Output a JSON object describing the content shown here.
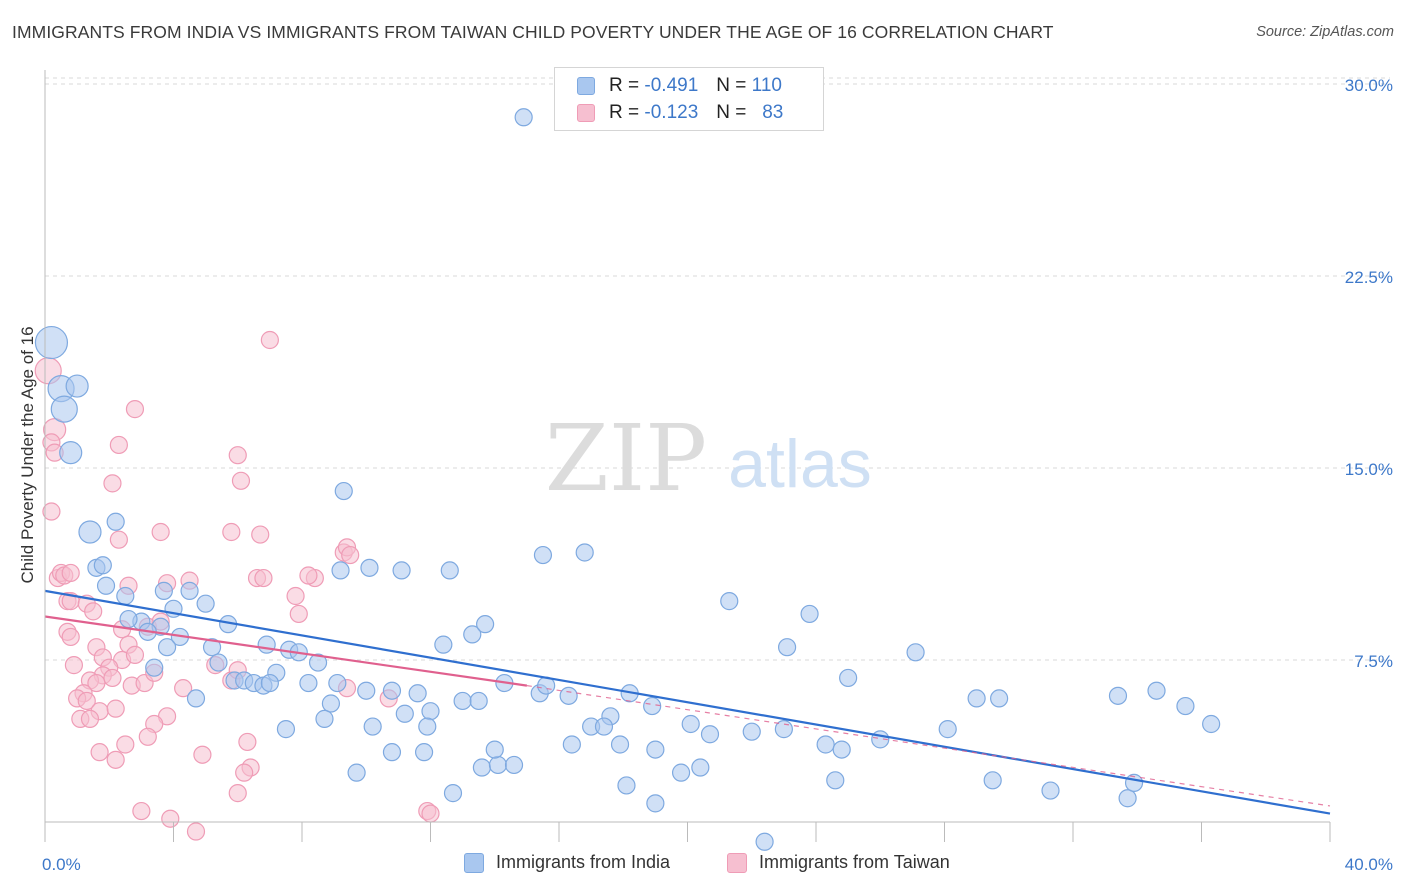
{
  "title": "IMMIGRANTS FROM INDIA VS IMMIGRANTS FROM TAIWAN CHILD POVERTY UNDER THE AGE OF 16 CORRELATION CHART",
  "source": "Source: ZipAtlas.com",
  "watermark": {
    "zip": "ZIP",
    "atlas": "atlas"
  },
  "legend": {
    "india": {
      "r_label": "R =",
      "r_value": "-0.491",
      "n_label": "N =",
      "n_value": "110"
    },
    "taiwan": {
      "r_label": "R =",
      "r_value": "-0.123",
      "n_label": "N =",
      "n_value": "83"
    }
  },
  "colors": {
    "india_fill": "#a9c7ef",
    "india_stroke": "#7ea9e0",
    "india_line": "#2f6fcf",
    "taiwan_fill": "#f6bfd0",
    "taiwan_stroke": "#ef9cb6",
    "taiwan_line": "#e0608e",
    "tick_label": "#3d78c9",
    "grid": "#d9d9d9"
  },
  "chart_data": {
    "type": "scatter",
    "title": "IMMIGRANTS FROM INDIA VS IMMIGRANTS FROM TAIWAN CHILD POVERTY UNDER THE AGE OF 16 CORRELATION CHART",
    "xlabel": "",
    "ylabel": "Child Poverty Under the Age of 16",
    "xlim": [
      0,
      40
    ],
    "ylim": [
      0,
      31
    ],
    "x_tick_labels": [
      "0.0%",
      "40.0%"
    ],
    "y_ticks": [
      7.5,
      15.0,
      22.5,
      30.0
    ],
    "y_tick_labels": [
      "7.5%",
      "15.0%",
      "22.5%",
      "30.0%"
    ],
    "grid": true,
    "legend_position": "top-center",
    "series": [
      {
        "name": "Immigrants from India",
        "r": -0.491,
        "n": 110,
        "trend": {
          "x0": 0,
          "y0": 10.2,
          "x1": 40,
          "y1": 1.5
        },
        "points": [
          [
            0.2,
            19.9,
            5
          ],
          [
            0.5,
            18.1,
            3
          ],
          [
            1.0,
            18.2,
            2
          ],
          [
            0.6,
            17.3,
            3
          ],
          [
            0.8,
            15.6,
            2
          ],
          [
            1.4,
            12.5,
            2
          ],
          [
            2.2,
            12.9,
            1
          ],
          [
            1.6,
            11.1,
            1
          ],
          [
            1.8,
            11.2,
            1
          ],
          [
            1.9,
            10.4,
            1
          ],
          [
            2.5,
            10.0,
            1
          ],
          [
            3.7,
            10.2,
            1
          ],
          [
            4.5,
            10.2,
            1
          ],
          [
            5.0,
            9.7,
            1
          ],
          [
            4.0,
            9.5,
            1
          ],
          [
            3.0,
            9.0,
            1
          ],
          [
            2.6,
            9.1,
            1
          ],
          [
            3.6,
            8.8,
            1
          ],
          [
            3.2,
            8.6,
            1
          ],
          [
            4.2,
            8.4,
            1
          ],
          [
            3.8,
            8.0,
            1
          ],
          [
            5.7,
            8.9,
            1
          ],
          [
            5.2,
            8.0,
            1
          ],
          [
            5.4,
            7.4,
            1
          ],
          [
            3.4,
            7.2,
            1
          ],
          [
            6.9,
            8.1,
            1
          ],
          [
            7.6,
            7.9,
            1
          ],
          [
            7.9,
            7.8,
            1
          ],
          [
            8.5,
            7.4,
            1
          ],
          [
            7.2,
            7.0,
            1
          ],
          [
            5.9,
            6.7,
            1
          ],
          [
            6.2,
            6.7,
            1
          ],
          [
            6.5,
            6.6,
            1
          ],
          [
            6.8,
            6.5,
            1
          ],
          [
            7.0,
            6.6,
            1
          ],
          [
            8.2,
            6.6,
            1
          ],
          [
            9.1,
            6.6,
            1
          ],
          [
            10.0,
            6.3,
            1
          ],
          [
            10.8,
            6.3,
            1
          ],
          [
            11.6,
            6.2,
            1
          ],
          [
            4.7,
            6.0,
            1
          ],
          [
            8.9,
            5.8,
            1
          ],
          [
            11.2,
            5.4,
            1
          ],
          [
            12.0,
            5.5,
            1
          ],
          [
            13.0,
            5.9,
            1
          ],
          [
            13.5,
            5.9,
            1
          ],
          [
            14.3,
            6.6,
            1
          ],
          [
            15.4,
            6.2,
            1
          ],
          [
            15.6,
            6.5,
            1
          ],
          [
            16.3,
            6.1,
            1
          ],
          [
            17.6,
            5.3,
            1
          ],
          [
            18.2,
            6.2,
            1
          ],
          [
            7.5,
            4.8,
            1
          ],
          [
            8.7,
            5.2,
            1
          ],
          [
            10.2,
            4.9,
            1
          ],
          [
            11.9,
            4.9,
            1
          ],
          [
            13.6,
            3.3,
            1
          ],
          [
            14.1,
            3.4,
            1
          ],
          [
            14.6,
            3.4,
            1
          ],
          [
            16.4,
            4.2,
            1
          ],
          [
            17.0,
            4.9,
            1
          ],
          [
            17.4,
            4.9,
            1
          ],
          [
            17.9,
            4.2,
            1
          ],
          [
            19.0,
            4.0,
            1
          ],
          [
            20.1,
            5.0,
            1
          ],
          [
            20.7,
            4.6,
            1
          ],
          [
            22.0,
            4.7,
            1
          ],
          [
            23.0,
            4.8,
            1
          ],
          [
            24.3,
            4.2,
            1
          ],
          [
            24.8,
            4.0,
            1
          ],
          [
            9.7,
            3.1,
            1
          ],
          [
            10.8,
            3.9,
            1
          ],
          [
            11.8,
            3.9,
            1
          ],
          [
            12.7,
            2.3,
            1
          ],
          [
            14.0,
            4.0,
            1
          ],
          [
            18.1,
            2.6,
            1
          ],
          [
            19.0,
            1.9,
            1
          ],
          [
            19.8,
            3.1,
            1
          ],
          [
            20.4,
            3.3,
            1
          ],
          [
            24.6,
            2.8,
            1
          ],
          [
            22.4,
            0.4,
            1
          ],
          [
            18.9,
            5.7,
            1
          ],
          [
            9.3,
            14.1,
            1
          ],
          [
            9.2,
            11.0,
            1
          ],
          [
            10.1,
            11.1,
            1
          ],
          [
            11.1,
            11.0,
            1
          ],
          [
            12.6,
            11.0,
            1
          ],
          [
            15.5,
            11.6,
            1
          ],
          [
            16.8,
            11.7,
            1
          ],
          [
            12.4,
            8.1,
            1
          ],
          [
            13.3,
            8.5,
            1
          ],
          [
            13.7,
            8.9,
            1
          ],
          [
            21.3,
            9.8,
            1
          ],
          [
            23.1,
            8.0,
            1
          ],
          [
            23.8,
            9.3,
            1
          ],
          [
            25.0,
            6.8,
            1
          ],
          [
            27.1,
            7.8,
            1
          ],
          [
            26.0,
            4.4,
            1
          ],
          [
            28.1,
            4.8,
            1
          ],
          [
            29.0,
            6.0,
            1
          ],
          [
            29.7,
            6.0,
            1
          ],
          [
            29.5,
            2.8,
            1
          ],
          [
            31.3,
            2.4,
            1
          ],
          [
            33.4,
            6.1,
            1
          ],
          [
            34.6,
            6.3,
            1
          ],
          [
            35.5,
            5.7,
            1
          ],
          [
            36.3,
            5.0,
            1
          ],
          [
            33.7,
            2.1,
            1
          ],
          [
            33.9,
            2.7,
            1
          ],
          [
            14.9,
            28.7,
            1
          ]
        ]
      },
      {
        "name": "Immigrants from Taiwan",
        "r": -0.123,
        "n": 83,
        "trend": {
          "x0": 0,
          "y0": 9.2,
          "x1": 15,
          "y1": 6.5,
          "dashed_to_x": 40,
          "dashed_to_y": 1.8
        },
        "points": [
          [
            0.1,
            18.8,
            3
          ],
          [
            0.3,
            16.5,
            2
          ],
          [
            0.2,
            16.0,
            1
          ],
          [
            0.3,
            15.6,
            1
          ],
          [
            0.2,
            13.3,
            1
          ],
          [
            0.4,
            10.7,
            1
          ],
          [
            0.5,
            10.9,
            1
          ],
          [
            0.6,
            10.8,
            1
          ],
          [
            0.8,
            10.9,
            1
          ],
          [
            0.7,
            9.8,
            1
          ],
          [
            0.8,
            9.8,
            1
          ],
          [
            1.3,
            9.7,
            1
          ],
          [
            1.5,
            9.4,
            1
          ],
          [
            0.7,
            8.6,
            1
          ],
          [
            0.8,
            8.4,
            1
          ],
          [
            1.6,
            8.0,
            1
          ],
          [
            2.4,
            8.7,
            1
          ],
          [
            2.6,
            8.1,
            1
          ],
          [
            3.2,
            8.8,
            1
          ],
          [
            3.6,
            9.0,
            1
          ],
          [
            3.8,
            10.5,
            1
          ],
          [
            2.6,
            10.4,
            1
          ],
          [
            0.9,
            7.3,
            1
          ],
          [
            1.8,
            7.6,
            1
          ],
          [
            2.4,
            7.5,
            1
          ],
          [
            2.8,
            7.7,
            1
          ],
          [
            2.0,
            7.2,
            1
          ],
          [
            1.8,
            6.9,
            1
          ],
          [
            1.4,
            6.7,
            1
          ],
          [
            1.6,
            6.6,
            1
          ],
          [
            2.1,
            6.8,
            1
          ],
          [
            2.7,
            6.5,
            1
          ],
          [
            3.1,
            6.6,
            1
          ],
          [
            3.4,
            7.0,
            1
          ],
          [
            1.2,
            6.2,
            1
          ],
          [
            1.0,
            6.0,
            1
          ],
          [
            1.3,
            5.9,
            1
          ],
          [
            1.7,
            5.5,
            1
          ],
          [
            2.2,
            5.6,
            1
          ],
          [
            1.1,
            5.2,
            1
          ],
          [
            1.4,
            5.2,
            1
          ],
          [
            3.8,
            5.3,
            1
          ],
          [
            3.4,
            5.0,
            1
          ],
          [
            3.2,
            4.5,
            1
          ],
          [
            2.5,
            4.2,
            1
          ],
          [
            1.7,
            3.9,
            1
          ],
          [
            2.2,
            3.6,
            1
          ],
          [
            4.9,
            3.8,
            1
          ],
          [
            6.3,
            4.3,
            1
          ],
          [
            6.4,
            3.3,
            1
          ],
          [
            6.2,
            3.1,
            1
          ],
          [
            6.0,
            2.3,
            1
          ],
          [
            3.0,
            1.6,
            1
          ],
          [
            3.9,
            1.3,
            1
          ],
          [
            4.7,
            0.8,
            1
          ],
          [
            3.6,
            12.5,
            1
          ],
          [
            2.3,
            12.2,
            1
          ],
          [
            2.3,
            15.9,
            1
          ],
          [
            2.1,
            14.4,
            1
          ],
          [
            2.8,
            17.3,
            1
          ],
          [
            6.1,
            14.5,
            1
          ],
          [
            6.0,
            15.5,
            1
          ],
          [
            5.8,
            12.5,
            1
          ],
          [
            6.7,
            12.4,
            1
          ],
          [
            7.0,
            20.0,
            1
          ],
          [
            4.5,
            10.6,
            1
          ],
          [
            6.6,
            10.7,
            1
          ],
          [
            6.8,
            10.7,
            1
          ],
          [
            7.8,
            10.0,
            1
          ],
          [
            7.9,
            9.3,
            1
          ],
          [
            8.4,
            10.7,
            1
          ],
          [
            8.2,
            10.8,
            1
          ],
          [
            9.3,
            11.7,
            1
          ],
          [
            9.4,
            11.9,
            1
          ],
          [
            9.5,
            11.6,
            1
          ],
          [
            5.3,
            7.3,
            1
          ],
          [
            5.8,
            6.7,
            1
          ],
          [
            6.0,
            7.1,
            1
          ],
          [
            4.3,
            6.4,
            1
          ],
          [
            11.9,
            1.6,
            1
          ],
          [
            12.0,
            1.5,
            1
          ],
          [
            9.4,
            6.4,
            1
          ],
          [
            10.7,
            6.0,
            1
          ]
        ]
      }
    ]
  },
  "bottom_legend": {
    "india_label": "Immigrants from India",
    "taiwan_label": "Immigrants from Taiwan"
  }
}
